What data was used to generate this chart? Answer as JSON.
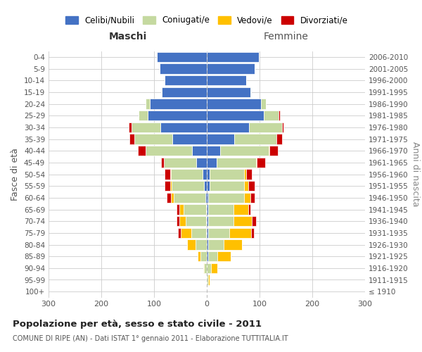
{
  "age_groups": [
    "100+",
    "95-99",
    "90-94",
    "85-89",
    "80-84",
    "75-79",
    "70-74",
    "65-69",
    "60-64",
    "55-59",
    "50-54",
    "45-49",
    "40-44",
    "35-39",
    "30-34",
    "25-29",
    "20-24",
    "15-19",
    "10-14",
    "5-9",
    "0-4"
  ],
  "birth_years": [
    "≤ 1910",
    "1911-1915",
    "1916-1920",
    "1921-1925",
    "1926-1930",
    "1931-1935",
    "1936-1940",
    "1941-1945",
    "1946-1950",
    "1951-1955",
    "1956-1960",
    "1961-1965",
    "1966-1970",
    "1971-1975",
    "1976-1980",
    "1981-1985",
    "1986-1990",
    "1991-1995",
    "1996-2000",
    "2001-2005",
    "2006-2010"
  ],
  "male_celibi": [
    0,
    0,
    0,
    0,
    0,
    2,
    2,
    2,
    3,
    5,
    8,
    20,
    28,
    65,
    88,
    112,
    108,
    85,
    80,
    90,
    95
  ],
  "male_coniugati": [
    0,
    2,
    5,
    12,
    22,
    28,
    38,
    42,
    60,
    62,
    60,
    62,
    88,
    72,
    55,
    18,
    8,
    2,
    0,
    0,
    0
  ],
  "male_vedovi": [
    0,
    0,
    2,
    5,
    15,
    20,
    12,
    8,
    5,
    3,
    2,
    0,
    0,
    0,
    0,
    0,
    0,
    0,
    0,
    0,
    0
  ],
  "male_divorziati": [
    0,
    0,
    0,
    0,
    0,
    5,
    5,
    5,
    8,
    10,
    10,
    5,
    15,
    10,
    5,
    0,
    0,
    0,
    0,
    0,
    0
  ],
  "female_nubili": [
    0,
    0,
    0,
    2,
    2,
    2,
    2,
    2,
    3,
    5,
    5,
    18,
    25,
    52,
    80,
    108,
    102,
    82,
    75,
    90,
    98
  ],
  "female_coniugate": [
    0,
    2,
    8,
    18,
    30,
    40,
    48,
    48,
    68,
    65,
    65,
    75,
    92,
    80,
    62,
    28,
    10,
    2,
    0,
    0,
    0
  ],
  "female_vedove": [
    0,
    3,
    12,
    25,
    35,
    42,
    35,
    28,
    12,
    8,
    5,
    2,
    2,
    0,
    0,
    0,
    0,
    0,
    0,
    0,
    0
  ],
  "female_divorziate": [
    0,
    0,
    0,
    0,
    0,
    5,
    8,
    5,
    8,
    12,
    10,
    15,
    15,
    10,
    3,
    2,
    0,
    0,
    0,
    0,
    0
  ],
  "colors": {
    "celibi": "#4472c4",
    "coniugati": "#c5d9a0",
    "vedovi": "#ffc000",
    "divorziati": "#cc0000"
  },
  "title": "Popolazione per età, sesso e stato civile - 2011",
  "subtitle": "COMUNE DI RIPE (AN) - Dati ISTAT 1° gennaio 2011 - Elaborazione TUTTITALIA.IT",
  "label_maschi": "Maschi",
  "label_femmine": "Femmine",
  "ylabel_left": "Fasce di età",
  "ylabel_right": "Anni di nascita",
  "legend_labels": [
    "Celibi/Nubili",
    "Coniugati/e",
    "Vedovi/e",
    "Divorziati/e"
  ],
  "xlim": 300,
  "background_color": "#ffffff",
  "grid_color": "#cccccc"
}
